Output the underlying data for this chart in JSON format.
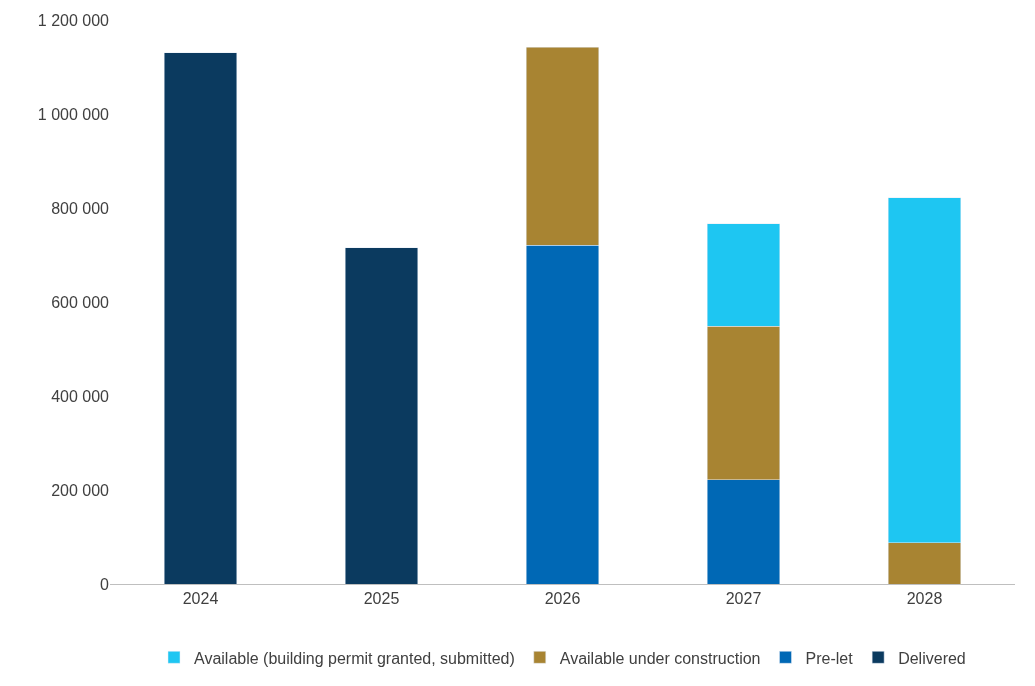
{
  "chart_data": {
    "type": "bar",
    "stacked": true,
    "categories": [
      "2024",
      "2025",
      "2026",
      "2027",
      "2028"
    ],
    "series": [
      {
        "name": "Delivered",
        "color": "#0b3a5f",
        "values": [
          1130000,
          715000,
          null,
          null,
          null
        ]
      },
      {
        "name": "Pre-let",
        "color": "#0068b5",
        "values": [
          null,
          null,
          721000,
          222000,
          null
        ]
      },
      {
        "name": "Available under construction",
        "color": "#a88432",
        "values": [
          null,
          null,
          421000,
          326000,
          88000
        ]
      },
      {
        "name": "Available (building permit granted, submitted)",
        "color": "#1ec6f2",
        "values": [
          null,
          null,
          null,
          218000,
          734000
        ]
      }
    ],
    "ylim": [
      0,
      1200000
    ],
    "yticks": [
      {
        "value": 0,
        "label": "0"
      },
      {
        "value": 200000,
        "label": "200 000"
      },
      {
        "value": 400000,
        "label": "400 000"
      },
      {
        "value": 600000,
        "label": "600 000"
      },
      {
        "value": 800000,
        "label": "800 000"
      },
      {
        "value": 1000000,
        "label": "1 000 000"
      },
      {
        "value": 1200000,
        "label": "1 200 000"
      }
    ],
    "grid": false,
    "legend": "bottom"
  }
}
